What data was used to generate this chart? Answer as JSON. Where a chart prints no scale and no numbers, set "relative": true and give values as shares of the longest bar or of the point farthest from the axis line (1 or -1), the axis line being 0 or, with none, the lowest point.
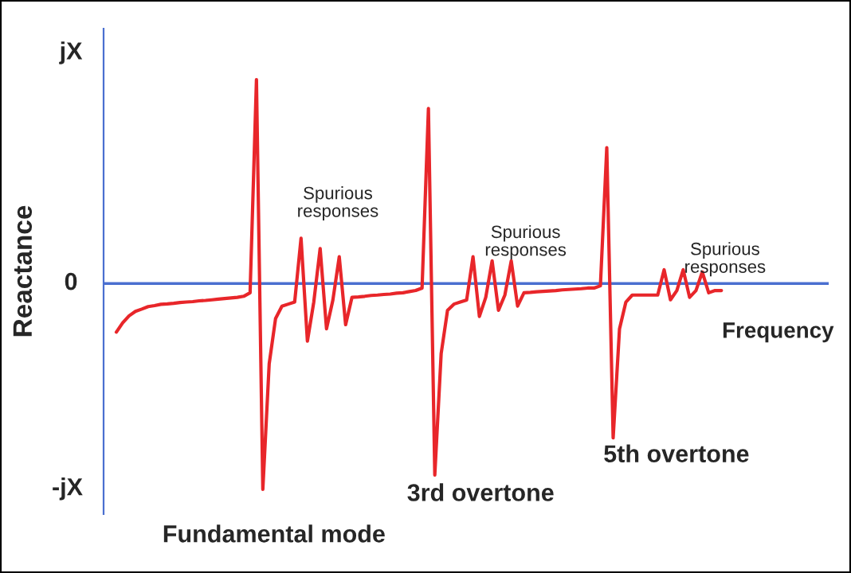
{
  "chart_data": {
    "type": "line",
    "xlabel": "Frequency",
    "ylabel": "Reactance",
    "categories": [
      null,
      null,
      null,
      null,
      null,
      null,
      null,
      null,
      null,
      null,
      null,
      null,
      null,
      null,
      null,
      null,
      null,
      null,
      null,
      null,
      null,
      null,
      null,
      null,
      null,
      null,
      null,
      null,
      null,
      null,
      null,
      null,
      null,
      null,
      null,
      null,
      null,
      null,
      null,
      null,
      null,
      null,
      null,
      null,
      null,
      null,
      null,
      null,
      null,
      null,
      null,
      null,
      null,
      null,
      null,
      null,
      null,
      null,
      null,
      null,
      null,
      null,
      null,
      null,
      null,
      null,
      null,
      null,
      null,
      null,
      null,
      null,
      null,
      null,
      null,
      null,
      null,
      null,
      null,
      null,
      null,
      null,
      null,
      null,
      null,
      null,
      null,
      null,
      null,
      null,
      null,
      null,
      null,
      null,
      null,
      null
    ],
    "series": [
      {
        "color": "#e8262a",
        "values": [
          -0.236,
          -0.191,
          -0.157,
          -0.135,
          -0.124,
          -0.112,
          -0.107,
          -0.101,
          -0.099,
          -0.096,
          -0.092,
          -0.09,
          -0.088,
          -0.084,
          -0.082,
          -0.079,
          -0.076,
          -0.073,
          -0.07,
          -0.067,
          -0.062,
          -0.045,
          0.99,
          -1,
          -0.39,
          -0.17,
          -0.11,
          -0.1,
          -0.09,
          0.22,
          -0.28,
          -0.09,
          0.17,
          -0.22,
          -0.08,
          0.13,
          -0.2,
          -0.067,
          -0.065,
          -0.062,
          -0.058,
          -0.056,
          -0.053,
          -0.051,
          -0.047,
          -0.045,
          -0.039,
          -0.034,
          -0.022,
          0.85,
          -0.93,
          -0.34,
          -0.13,
          -0.1,
          -0.09,
          -0.08,
          0.13,
          -0.16,
          -0.067,
          0.11,
          -0.13,
          -0.056,
          0.11,
          -0.11,
          -0.045,
          -0.043,
          -0.04,
          -0.038,
          -0.036,
          -0.034,
          -0.031,
          -0.029,
          -0.027,
          -0.025,
          -0.022,
          -0.022,
          -0.011,
          0.66,
          -0.75,
          -0.22,
          -0.09,
          -0.056,
          -0.056,
          -0.056,
          -0.056,
          -0.056,
          0.067,
          -0.079,
          -0.034,
          0.067,
          -0.067,
          -0.034,
          0.056,
          -0.045,
          -0.034,
          -0.034
        ]
      }
    ],
    "relative": true,
    "ref_lines": [
      {
        "axis": "y",
        "value": 0,
        "color": "#4a6fd0"
      }
    ],
    "legend": false,
    "marker": "none",
    "line_style": "solid",
    "annotations": [
      "jX",
      "0",
      "-jX",
      "Spurious\nresponses",
      "Spurious\nresponses",
      "Spurious\nresponses",
      "Fundamental mode",
      "3rd overtone",
      "5th overtone"
    ]
  }
}
